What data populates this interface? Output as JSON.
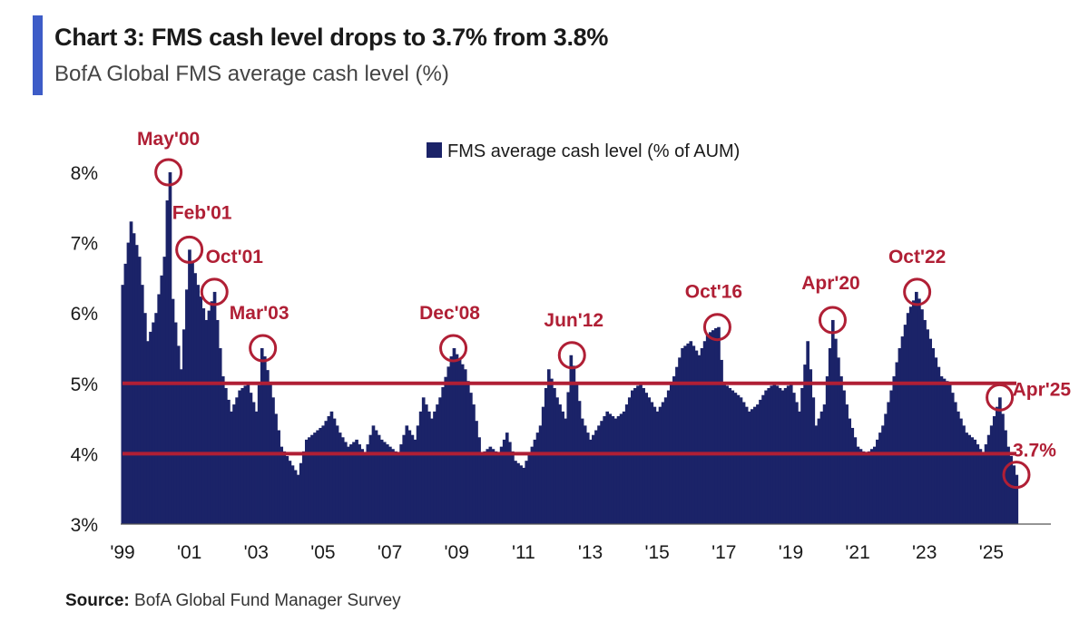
{
  "header": {
    "title": "Chart 3: FMS cash level drops to 3.7% from 3.8%",
    "subtitle": "BofA Global FMS average cash level (%)"
  },
  "footer": {
    "source_label": "Source:",
    "source_text": "BofA Global Fund Manager Survey"
  },
  "colors": {
    "bars": "#1b2368",
    "highlight": "#b01f35",
    "accent": "#3d5cc7"
  },
  "chart_data": {
    "type": "bar",
    "title": "Chart 3: FMS cash level drops to 3.7% from 3.8%",
    "subtitle": "BofA Global FMS average cash level (%)",
    "legend": {
      "label": "FMS average cash level (% of AUM)",
      "placement": "top-center"
    },
    "ylim": [
      3,
      8
    ],
    "y_ticks": [
      3,
      4,
      5,
      6,
      7,
      8
    ],
    "y_tick_labels": [
      "3%",
      "4%",
      "5%",
      "6%",
      "7%",
      "8%"
    ],
    "x_ticks": [
      1999,
      2001,
      2003,
      2005,
      2007,
      2009,
      2011,
      2013,
      2015,
      2017,
      2019,
      2021,
      2023,
      2025
    ],
    "x_tick_labels": [
      "'99",
      "'01",
      "'03",
      "'05",
      "'07",
      "'09",
      "'11",
      "'13",
      "'15",
      "'17",
      "'19",
      "'21",
      "'23",
      "'25"
    ],
    "x_range": [
      1999.0,
      2025.75
    ],
    "reference_lines": [
      4.0,
      5.0
    ],
    "series": [
      {
        "name": "FMS average cash level (% of AUM)",
        "points": [
          [
            1999.0,
            6.4
          ],
          [
            1999.25,
            7.3
          ],
          [
            1999.5,
            6.8
          ],
          [
            1999.75,
            5.6
          ],
          [
            2000.0,
            6.0
          ],
          [
            2000.25,
            6.8
          ],
          [
            2000.375,
            8.0
          ],
          [
            2000.5,
            6.2
          ],
          [
            2000.75,
            5.2
          ],
          [
            2001.0,
            6.9
          ],
          [
            2001.25,
            6.4
          ],
          [
            2001.5,
            5.9
          ],
          [
            2001.75,
            6.3
          ],
          [
            2002.0,
            5.1
          ],
          [
            2002.25,
            4.6
          ],
          [
            2002.5,
            4.9
          ],
          [
            2002.75,
            5.0
          ],
          [
            2003.0,
            4.6
          ],
          [
            2003.2,
            5.5
          ],
          [
            2003.5,
            4.8
          ],
          [
            2003.75,
            4.1
          ],
          [
            2004.0,
            3.9
          ],
          [
            2004.25,
            3.7
          ],
          [
            2004.5,
            4.2
          ],
          [
            2004.75,
            4.3
          ],
          [
            2005.0,
            4.4
          ],
          [
            2005.25,
            4.6
          ],
          [
            2005.5,
            4.3
          ],
          [
            2005.75,
            4.1
          ],
          [
            2006.0,
            4.2
          ],
          [
            2006.25,
            4.0
          ],
          [
            2006.5,
            4.4
          ],
          [
            2006.75,
            4.2
          ],
          [
            2007.0,
            4.1
          ],
          [
            2007.25,
            4.0
          ],
          [
            2007.5,
            4.4
          ],
          [
            2007.75,
            4.2
          ],
          [
            2008.0,
            4.8
          ],
          [
            2008.25,
            4.5
          ],
          [
            2008.5,
            4.8
          ],
          [
            2008.9,
            5.5
          ],
          [
            2009.25,
            5.2
          ],
          [
            2009.5,
            4.7
          ],
          [
            2009.75,
            4.0
          ],
          [
            2010.0,
            4.1
          ],
          [
            2010.25,
            4.0
          ],
          [
            2010.5,
            4.3
          ],
          [
            2010.75,
            3.9
          ],
          [
            2011.0,
            3.8
          ],
          [
            2011.25,
            4.1
          ],
          [
            2011.5,
            4.4
          ],
          [
            2011.75,
            5.2
          ],
          [
            2012.0,
            4.8
          ],
          [
            2012.25,
            4.5
          ],
          [
            2012.45,
            5.4
          ],
          [
            2012.75,
            4.5
          ],
          [
            2013.0,
            4.2
          ],
          [
            2013.25,
            4.4
          ],
          [
            2013.5,
            4.6
          ],
          [
            2013.75,
            4.5
          ],
          [
            2014.0,
            4.6
          ],
          [
            2014.25,
            4.9
          ],
          [
            2014.5,
            5.0
          ],
          [
            2014.75,
            4.8
          ],
          [
            2015.0,
            4.6
          ],
          [
            2015.25,
            4.8
          ],
          [
            2015.5,
            5.1
          ],
          [
            2015.75,
            5.5
          ],
          [
            2016.0,
            5.6
          ],
          [
            2016.25,
            5.4
          ],
          [
            2016.5,
            5.7
          ],
          [
            2016.8,
            5.8
          ],
          [
            2017.0,
            5.0
          ],
          [
            2017.25,
            4.9
          ],
          [
            2017.5,
            4.8
          ],
          [
            2017.75,
            4.6
          ],
          [
            2018.0,
            4.7
          ],
          [
            2018.25,
            4.9
          ],
          [
            2018.5,
            5.0
          ],
          [
            2018.75,
            4.9
          ],
          [
            2019.0,
            5.0
          ],
          [
            2019.25,
            4.6
          ],
          [
            2019.5,
            5.6
          ],
          [
            2019.75,
            4.4
          ],
          [
            2020.0,
            4.7
          ],
          [
            2020.25,
            5.9
          ],
          [
            2020.5,
            5.1
          ],
          [
            2020.75,
            4.5
          ],
          [
            2021.0,
            4.1
          ],
          [
            2021.25,
            4.0
          ],
          [
            2021.5,
            4.1
          ],
          [
            2021.75,
            4.4
          ],
          [
            2022.0,
            4.9
          ],
          [
            2022.25,
            5.5
          ],
          [
            2022.5,
            6.0
          ],
          [
            2022.78,
            6.3
          ],
          [
            2023.0,
            5.9
          ],
          [
            2023.25,
            5.5
          ],
          [
            2023.5,
            5.1
          ],
          [
            2023.75,
            5.0
          ],
          [
            2024.0,
            4.6
          ],
          [
            2024.25,
            4.3
          ],
          [
            2024.5,
            4.2
          ],
          [
            2024.75,
            4.0
          ],
          [
            2025.0,
            4.4
          ],
          [
            2025.25,
            4.8
          ],
          [
            2025.5,
            4.1
          ],
          [
            2025.75,
            3.7
          ]
        ]
      }
    ],
    "annotations": [
      {
        "label": "May'00",
        "x": 2000.375,
        "y": 8.0
      },
      {
        "label": "Feb'01",
        "x": 2001.0,
        "y": 6.9
      },
      {
        "label": "Oct'01",
        "x": 2001.75,
        "y": 6.3
      },
      {
        "label": "Mar'03",
        "x": 2003.2,
        "y": 5.5
      },
      {
        "label": "Dec'08",
        "x": 2008.9,
        "y": 5.5
      },
      {
        "label": "Jun'12",
        "x": 2012.45,
        "y": 5.4
      },
      {
        "label": "Oct'16",
        "x": 2016.8,
        "y": 5.8
      },
      {
        "label": "Apr'20",
        "x": 2020.25,
        "y": 5.9
      },
      {
        "label": "Oct'22",
        "x": 2022.78,
        "y": 6.3
      },
      {
        "label": "Apr'25",
        "x": 2025.25,
        "y": 4.8
      },
      {
        "label": "3.7%",
        "x": 2025.75,
        "y": 3.7
      }
    ]
  }
}
